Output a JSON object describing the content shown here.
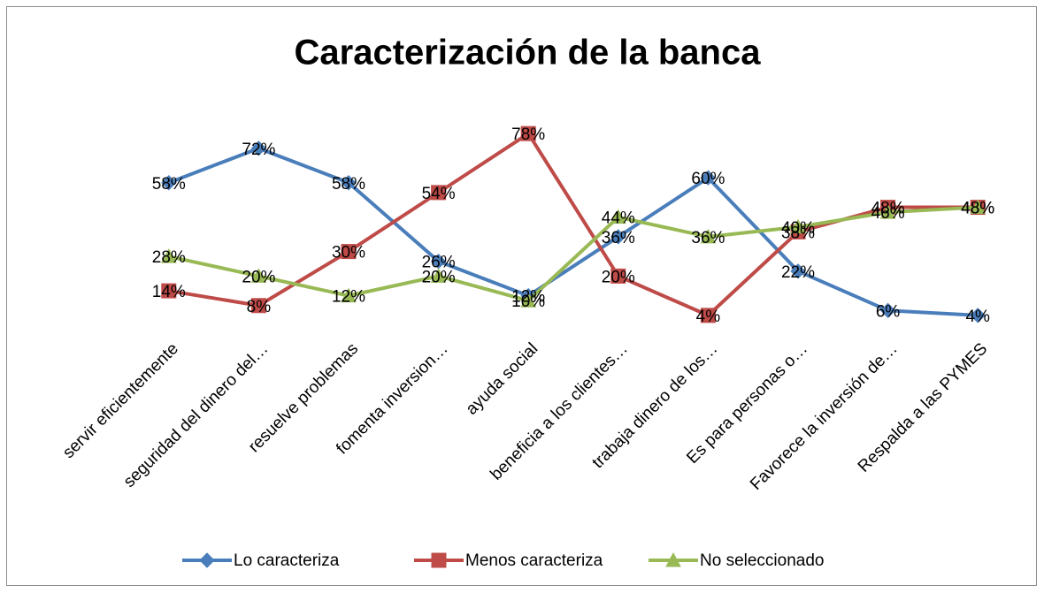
{
  "chart_data": {
    "type": "line",
    "title": "Caracterización de la banca",
    "categories": [
      "servir eficientemente",
      "seguridad del dinero del…",
      "resuelve problemas",
      "fomenta inversion…",
      "ayuda social",
      "beneficia a los clientes…",
      "trabaja dinero de los…",
      "Es para personas o…",
      "Favorece la inversión de…",
      "Respalda a las PYMES"
    ],
    "series": [
      {
        "name": "Lo caracteriza",
        "color": "#4a7ebb",
        "marker": "diamond",
        "values": [
          58,
          72,
          58,
          26,
          12,
          36,
          60,
          22,
          6,
          4
        ],
        "value_labels": [
          "58%",
          "72%",
          "58%",
          "26%",
          "12%",
          "36%",
          "60%",
          "22%",
          "6%",
          "4%"
        ]
      },
      {
        "name": "Menos caracteriza",
        "color": "#be4b48",
        "marker": "square",
        "values": [
          14,
          8,
          30,
          54,
          78,
          20,
          4,
          38,
          48,
          48
        ],
        "value_labels": [
          "14%",
          "8%",
          "30%",
          "54%",
          "78%",
          "20%",
          "4%",
          "38%",
          "48%",
          "48%"
        ]
      },
      {
        "name": "No seleccionado",
        "color": "#98b954",
        "marker": "triangle",
        "values": [
          28,
          20,
          12,
          20,
          10,
          44,
          36,
          40,
          46,
          48
        ],
        "value_labels": [
          "28%",
          "20%",
          "12%",
          "20%",
          "10%",
          "44%",
          "36%",
          "40%",
          "46%",
          "48%"
        ]
      }
    ],
    "legend": "bottom"
  }
}
